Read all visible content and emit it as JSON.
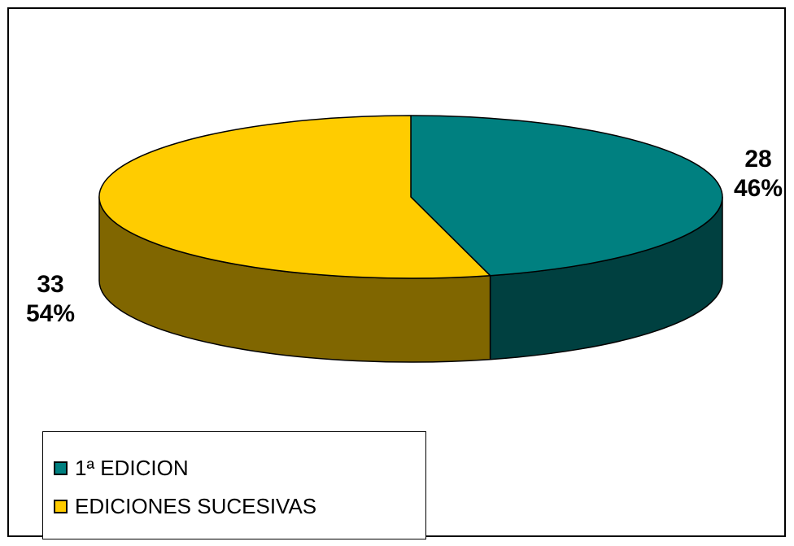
{
  "chart_data": {
    "type": "pie",
    "style": "3d",
    "categories": [
      "1ª EDICION",
      "EDICIONES SUCESIVAS"
    ],
    "values": [
      28,
      33
    ],
    "percentages": [
      "46%",
      "54%"
    ],
    "colors": [
      "#008080",
      "#ffcc00"
    ],
    "side_colors": [
      "#004040",
      "#806600"
    ],
    "legend_position": "bottom-left",
    "data_labels": [
      {
        "value": "28",
        "percent": "46%"
      },
      {
        "value": "33",
        "percent": "54%"
      }
    ],
    "title": ""
  }
}
